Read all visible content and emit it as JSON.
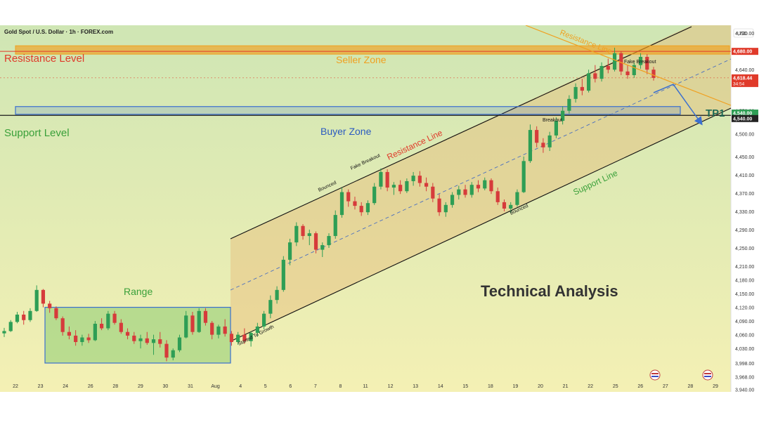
{
  "header": {
    "symbol": "Gold Spot / U.S. Dollar · 1h · FOREX.com",
    "currency": "USD"
  },
  "colors": {
    "bg_top": "#cfe6b4",
    "bg_bottom": "#f4f0b4",
    "seller_zone": "#f0a020",
    "buyer_zone": "#3a6fd0",
    "range_box": "#3cae3c",
    "channel_fill": "#e8b874",
    "resistance_label": "#e03a2a",
    "support_label": "#3aa03a",
    "up_candle": "#2e9e55",
    "down_candle": "#d63b3b"
  },
  "chart_data": {
    "type": "candlestick",
    "title": "Technical Analysis",
    "y_axis": {
      "min": 3938,
      "max": 4734,
      "ticks": [
        3940,
        3968,
        3998,
        4030,
        4060,
        4090,
        4120,
        4150,
        4180,
        4210,
        4250,
        4290,
        4330,
        4370,
        4410,
        4450,
        4500,
        4550,
        4640,
        4720
      ]
    },
    "x_axis": {
      "labels": [
        "22",
        "23",
        "24",
        "26",
        "28",
        "29",
        "30",
        "31",
        "Aug",
        "4",
        "5",
        "6",
        "7",
        "8",
        "11",
        "12",
        "13",
        "14",
        "15",
        "18",
        "19",
        "20",
        "21",
        "22",
        "25",
        "26",
        "27",
        "28",
        "29"
      ]
    },
    "price_badges": [
      {
        "value": "4,680.00",
        "price": 4680,
        "color": "#e03a2a"
      },
      {
        "value": "4,618.44",
        "price": 4622,
        "color": "#e03a2a",
        "sub": "34:54"
      },
      {
        "value": "4,540.00",
        "price": 4545,
        "color": "#2e9e55"
      },
      {
        "value": "4,540.00",
        "price": 4533,
        "color": "#222222"
      }
    ],
    "levels": {
      "resistance_level": {
        "label": "Resistance Level",
        "price": 4680
      },
      "support_level": {
        "label": "Support Level",
        "price": 4540
      }
    },
    "zones": {
      "seller": {
        "label": "Seller Zone",
        "from": 4670,
        "to": 4680
      },
      "buyer": {
        "label": "Buyer Zone",
        "from": 4540,
        "to": 4550
      },
      "range": {
        "label": "Range",
        "from": 3998,
        "to": 4120,
        "x_from": "23",
        "x_to": "Aug"
      }
    },
    "lines": {
      "resistance_line": "Resistance Line",
      "support_line": "Support Line",
      "resistance_line_top": "Resistance Line"
    },
    "annotations": [
      "Fake Breakout",
      "Bounced",
      "Breakout",
      "Bounced",
      "Started To Growth",
      "Fake Breakout"
    ],
    "target": "TP1",
    "candles": [
      [
        4063,
        4075,
        4055,
        4068
      ],
      [
        4068,
        4092,
        4066,
        4088
      ],
      [
        4088,
        4110,
        4085,
        4104
      ],
      [
        4104,
        4112,
        4082,
        4092
      ],
      [
        4092,
        4118,
        4088,
        4112
      ],
      [
        4112,
        4168,
        4110,
        4158
      ],
      [
        4158,
        4160,
        4120,
        4128
      ],
      [
        4128,
        4134,
        4108,
        4118
      ],
      [
        4118,
        4122,
        4092,
        4096
      ],
      [
        4096,
        4100,
        4058,
        4066
      ],
      [
        4066,
        4078,
        4050,
        4058
      ],
      [
        4058,
        4070,
        4036,
        4044
      ],
      [
        4044,
        4060,
        4036,
        4054
      ],
      [
        4054,
        4062,
        4042,
        4048
      ],
      [
        4048,
        4090,
        4046,
        4084
      ],
      [
        4084,
        4096,
        4070,
        4074
      ],
      [
        4074,
        4112,
        4070,
        4106
      ],
      [
        4106,
        4112,
        4082,
        4086
      ],
      [
        4086,
        4094,
        4062,
        4066
      ],
      [
        4066,
        4074,
        4050,
        4058
      ],
      [
        4058,
        4066,
        4040,
        4046
      ],
      [
        4046,
        4060,
        4030,
        4052
      ],
      [
        4052,
        4066,
        4038,
        4042
      ],
      [
        4042,
        4060,
        4016,
        4050
      ],
      [
        4050,
        4066,
        4032,
        4040
      ],
      [
        4040,
        4048,
        4002,
        4010
      ],
      [
        4010,
        4030,
        4004,
        4026
      ],
      [
        4026,
        4060,
        4022,
        4054
      ],
      [
        4054,
        4112,
        4052,
        4102
      ],
      [
        4102,
        4110,
        4060,
        4066
      ],
      [
        4066,
        4118,
        4064,
        4112
      ],
      [
        4112,
        4118,
        4080,
        4086
      ],
      [
        4086,
        4090,
        4050,
        4060
      ],
      [
        4060,
        4082,
        4052,
        4078
      ],
      [
        4078,
        4094,
        4056,
        4062
      ],
      [
        4062,
        4068,
        4036,
        4044
      ],
      [
        4044,
        4066,
        4038,
        4060
      ],
      [
        4060,
        4074,
        4040,
        4046
      ],
      [
        4046,
        4068,
        4034,
        4064
      ],
      [
        4064,
        4086,
        4056,
        4078
      ],
      [
        4078,
        4112,
        4072,
        4106
      ],
      [
        4106,
        4146,
        4096,
        4136
      ],
      [
        4136,
        4166,
        4128,
        4158
      ],
      [
        4158,
        4232,
        4154,
        4224
      ],
      [
        4224,
        4270,
        4212,
        4262
      ],
      [
        4262,
        4306,
        4254,
        4298
      ],
      [
        4298,
        4302,
        4268,
        4276
      ],
      [
        4276,
        4290,
        4256,
        4282
      ],
      [
        4282,
        4286,
        4238,
        4246
      ],
      [
        4246,
        4262,
        4230,
        4256
      ],
      [
        4256,
        4282,
        4250,
        4276
      ],
      [
        4276,
        4332,
        4270,
        4322
      ],
      [
        4322,
        4382,
        4316,
        4372
      ],
      [
        4372,
        4378,
        4340,
        4352
      ],
      [
        4352,
        4362,
        4334,
        4342
      ],
      [
        4342,
        4350,
        4320,
        4328
      ],
      [
        4328,
        4354,
        4322,
        4348
      ],
      [
        4348,
        4392,
        4344,
        4384
      ],
      [
        4384,
        4424,
        4378,
        4416
      ],
      [
        4416,
        4422,
        4374,
        4382
      ],
      [
        4382,
        4394,
        4366,
        4388
      ],
      [
        4388,
        4398,
        4368,
        4374
      ],
      [
        4374,
        4402,
        4370,
        4396
      ],
      [
        4396,
        4416,
        4386,
        4408
      ],
      [
        4408,
        4418,
        4384,
        4392
      ],
      [
        4392,
        4404,
        4374,
        4384
      ],
      [
        4384,
        4392,
        4350,
        4358
      ],
      [
        4358,
        4368,
        4320,
        4328
      ],
      [
        4328,
        4350,
        4318,
        4344
      ],
      [
        4344,
        4372,
        4338,
        4366
      ],
      [
        4366,
        4386,
        4356,
        4378
      ],
      [
        4378,
        4388,
        4360,
        4366
      ],
      [
        4366,
        4394,
        4360,
        4388
      ],
      [
        4388,
        4398,
        4372,
        4380
      ],
      [
        4380,
        4404,
        4376,
        4398
      ],
      [
        4398,
        4402,
        4368,
        4374
      ],
      [
        4374,
        4382,
        4344,
        4350
      ],
      [
        4350,
        4356,
        4330,
        4336
      ],
      [
        4336,
        4350,
        4326,
        4344
      ],
      [
        4344,
        4378,
        4340,
        4372
      ],
      [
        4372,
        4450,
        4370,
        4440
      ],
      [
        4440,
        4520,
        4436,
        4508
      ],
      [
        4508,
        4516,
        4470,
        4480
      ],
      [
        4480,
        4490,
        4458,
        4470
      ],
      [
        4470,
        4504,
        4462,
        4496
      ],
      [
        4496,
        4536,
        4490,
        4528
      ],
      [
        4528,
        4560,
        4520,
        4550
      ],
      [
        4550,
        4584,
        4544,
        4576
      ],
      [
        4576,
        4610,
        4568,
        4602
      ],
      [
        4602,
        4620,
        4584,
        4594
      ],
      [
        4594,
        4640,
        4590,
        4632
      ],
      [
        4632,
        4650,
        4612,
        4620
      ],
      [
        4620,
        4656,
        4614,
        4648
      ],
      [
        4648,
        4664,
        4632,
        4640
      ],
      [
        4640,
        4688,
        4636,
        4676
      ],
      [
        4676,
        4680,
        4628,
        4636
      ],
      [
        4636,
        4650,
        4620,
        4628
      ],
      [
        4628,
        4656,
        4622,
        4650
      ],
      [
        4650,
        4676,
        4642,
        4668
      ],
      [
        4668,
        4674,
        4630,
        4640
      ],
      [
        4640,
        4646,
        4616,
        4622
      ]
    ]
  }
}
